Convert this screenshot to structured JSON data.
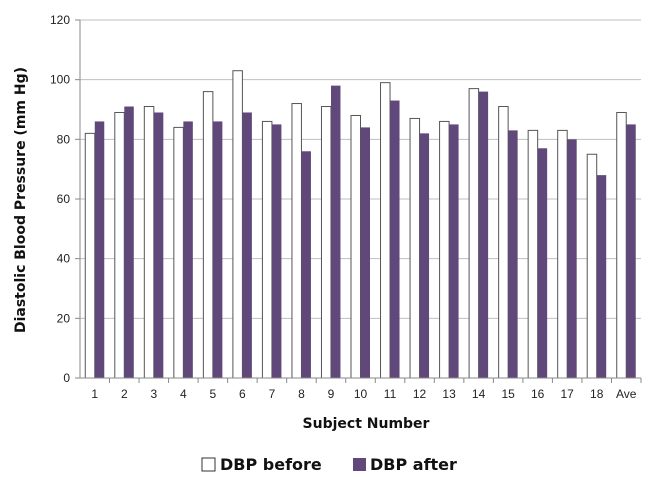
{
  "chart_data": {
    "type": "bar",
    "categories": [
      "1",
      "2",
      "3",
      "4",
      "5",
      "6",
      "7",
      "8",
      "9",
      "10",
      "11",
      "12",
      "13",
      "14",
      "15",
      "16",
      "17",
      "18",
      "Ave"
    ],
    "series": [
      {
        "name": "DBP before",
        "values": [
          82,
          89,
          91,
          84,
          96,
          103,
          86,
          92,
          91,
          88,
          99,
          87,
          86,
          97,
          91,
          83,
          83,
          75,
          89
        ]
      },
      {
        "name": "DBP after",
        "values": [
          86,
          91,
          89,
          86,
          86,
          89,
          85,
          76,
          98,
          84,
          93,
          82,
          85,
          96,
          83,
          77,
          80,
          68,
          85
        ]
      }
    ],
    "title": "",
    "xlabel": "Subject Number",
    "ylabel": "Diastolic Blood Pressure (mm Hg)",
    "ylim": [
      0,
      120
    ],
    "yticks": [
      0,
      20,
      40,
      60,
      80,
      100,
      120
    ],
    "grid": true,
    "legend_position": "bottom",
    "colors": {
      "before_fill": "#ffffff",
      "before_stroke": "#555555",
      "after_fill": "#60497a",
      "gridline": "#bfbfbf",
      "axis": "#888888"
    }
  }
}
